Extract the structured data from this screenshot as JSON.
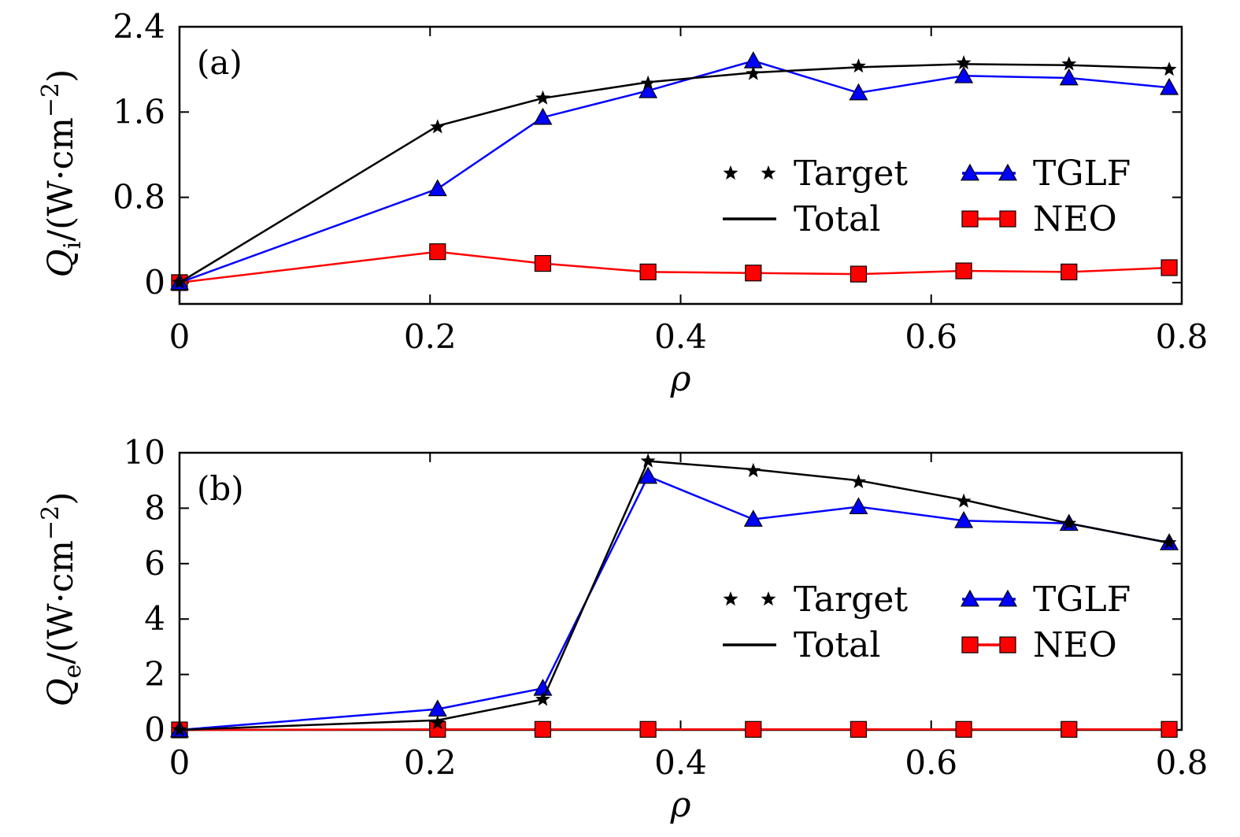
{
  "chart_data": [
    {
      "type": "line",
      "panel_label": "(a)",
      "xlabel": "ρ",
      "ylabel": {
        "symbol": "Q",
        "subscript": "i",
        "unit": "/(W·cm",
        "exponent": "−2",
        "close": ")"
      },
      "xlim": [
        0,
        0.8
      ],
      "ylim": [
        -0.2,
        2.4
      ],
      "xticks": [
        "0",
        "0.2",
        "0.4",
        "0.6",
        "0.8"
      ],
      "xtick_values": [
        0,
        0.2,
        0.4,
        0.6,
        0.8
      ],
      "yticks": [
        "0",
        "0.8",
        "1.6",
        "2.4"
      ],
      "ytick_values": [
        0,
        0.8,
        1.6,
        2.4
      ],
      "grid": false,
      "legend_position": "center-right",
      "x": [
        0,
        0.206,
        0.29,
        0.374,
        0.458,
        0.542,
        0.626,
        0.71,
        0.79
      ],
      "series": [
        {
          "name": "Target",
          "marker": "star",
          "line": false,
          "color": "#000000",
          "values": [
            0.0,
            1.46,
            1.73,
            1.87,
            1.96,
            2.03,
            2.06,
            2.05,
            2.0
          ]
        },
        {
          "name": "Total",
          "marker": "none",
          "line": true,
          "color": "#000000",
          "values": [
            0.0,
            1.47,
            1.73,
            1.88,
            1.97,
            2.02,
            2.05,
            2.04,
            2.01
          ]
        },
        {
          "name": "TGLF",
          "marker": "triangle",
          "line": true,
          "color": "#0000ff",
          "values": [
            0.0,
            0.88,
            1.55,
            1.8,
            2.08,
            1.78,
            1.94,
            1.92,
            1.83
          ]
        },
        {
          "name": "NEO",
          "marker": "square",
          "line": true,
          "color": "#ff0000",
          "values": [
            0.0,
            0.29,
            0.18,
            0.1,
            0.09,
            0.08,
            0.11,
            0.1,
            0.14
          ]
        }
      ]
    },
    {
      "type": "line",
      "panel_label": "(b)",
      "xlabel": "ρ",
      "ylabel": {
        "symbol": "Q",
        "subscript": "e",
        "unit": "/(W·cm",
        "exponent": "−2",
        "close": ")"
      },
      "xlim": [
        0,
        0.8
      ],
      "ylim": [
        0,
        10
      ],
      "xticks": [
        "0",
        "0.2",
        "0.4",
        "0.6",
        "0.8"
      ],
      "xtick_values": [
        0,
        0.2,
        0.4,
        0.6,
        0.8
      ],
      "yticks": [
        "0",
        "2",
        "4",
        "6",
        "8",
        "10"
      ],
      "ytick_values": [
        0,
        2,
        4,
        6,
        8,
        10
      ],
      "grid": false,
      "legend_position": "center-right",
      "x": [
        0,
        0.206,
        0.29,
        0.374,
        0.458,
        0.542,
        0.626,
        0.71,
        0.79
      ],
      "series": [
        {
          "name": "Target",
          "marker": "star",
          "line": false,
          "color": "#000000",
          "values": [
            0.0,
            0.25,
            1.1,
            9.7,
            9.35,
            8.95,
            8.25,
            7.45,
            6.75
          ]
        },
        {
          "name": "Total",
          "marker": "none",
          "line": true,
          "color": "#000000",
          "values": [
            0.0,
            0.35,
            1.1,
            9.7,
            9.4,
            9.0,
            8.3,
            7.45,
            6.75
          ]
        },
        {
          "name": "TGLF",
          "marker": "triangle",
          "line": true,
          "color": "#0000ff",
          "values": [
            0.0,
            0.75,
            1.5,
            9.15,
            7.6,
            8.05,
            7.55,
            7.45,
            6.75
          ]
        },
        {
          "name": "NEO",
          "marker": "square",
          "line": true,
          "color": "#ff0000",
          "values": [
            0.0,
            0.02,
            0.02,
            0.02,
            0.02,
            0.02,
            0.02,
            0.02,
            0.02
          ]
        }
      ]
    }
  ]
}
